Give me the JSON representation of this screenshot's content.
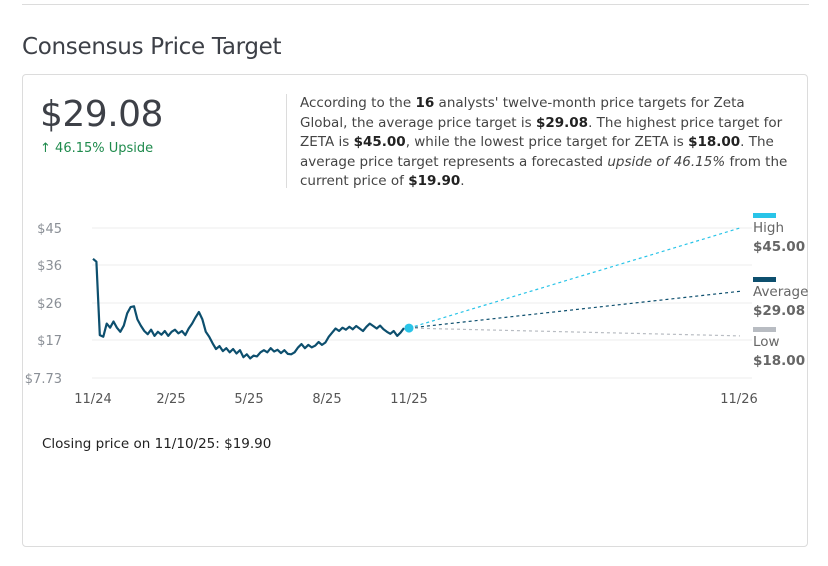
{
  "title": "Consensus Price Target",
  "price_target": "$29.08",
  "upside_label": "46.15% Upside",
  "summary": {
    "t1": "According to the ",
    "analyst_count": "16",
    "t2": " analysts' twelve-month price targets for Zeta Global, the average price target is ",
    "average": "$29.08",
    "t3": ". The highest price target for ZETA is ",
    "high": "$45.00",
    "t4": ", while the lowest price target for ZETA is ",
    "low": "$18.00",
    "t5": ". The average price target represents a forecasted ",
    "upside_phrase": "upside of 46.15%",
    "t6": " from the current price of ",
    "current": "$19.90",
    "t7": "."
  },
  "closing_price": "Closing price on 11/10/25: $19.90",
  "colors": {
    "price_line": "#0d4f6e",
    "high": "#29c4e8",
    "average": "#0d4f6e",
    "low": "#b8bcc2",
    "upside": "#1f8b4d"
  },
  "chart_data": {
    "type": "line",
    "y_ticks": [
      "$45",
      "$36",
      "$26",
      "$17",
      "$7.73"
    ],
    "y_tick_values": [
      45,
      36,
      26,
      17,
      7.73
    ],
    "ylim": [
      7.73,
      45
    ],
    "x_ticks": [
      "11/24",
      "2/25",
      "5/25",
      "8/25",
      "11/25",
      "11/26"
    ],
    "series": [
      {
        "values": [
          [
            0,
            37.5
          ],
          [
            1,
            36.8
          ],
          [
            2,
            18.2
          ],
          [
            3,
            17.8
          ],
          [
            4,
            21.0
          ],
          [
            5,
            20.0
          ],
          [
            6,
            21.5
          ],
          [
            7,
            20.0
          ],
          [
            8,
            19.0
          ],
          [
            9,
            20.5
          ],
          [
            10,
            23.5
          ],
          [
            11,
            25.0
          ],
          [
            12,
            25.2
          ],
          [
            13,
            22.0
          ],
          [
            14,
            20.5
          ],
          [
            15,
            19.2
          ],
          [
            16,
            18.4
          ],
          [
            17,
            19.5
          ],
          [
            18,
            18.0
          ],
          [
            19,
            19.0
          ],
          [
            20,
            18.3
          ],
          [
            21,
            19.2
          ],
          [
            22,
            18.0
          ],
          [
            23,
            19.0
          ],
          [
            24,
            19.5
          ],
          [
            25,
            18.6
          ],
          [
            26,
            19.2
          ],
          [
            27,
            18.2
          ],
          [
            28,
            19.8
          ],
          [
            29,
            21.0
          ],
          [
            30,
            22.5
          ],
          [
            31,
            23.8
          ],
          [
            32,
            22.0
          ],
          [
            33,
            19.0
          ],
          [
            34,
            17.8
          ],
          [
            35,
            16.2
          ],
          [
            36,
            14.8
          ],
          [
            37,
            15.5
          ],
          [
            38,
            14.3
          ],
          [
            39,
            15.0
          ],
          [
            40,
            14.0
          ],
          [
            41,
            14.8
          ],
          [
            42,
            13.7
          ],
          [
            43,
            14.5
          ],
          [
            44,
            12.8
          ],
          [
            45,
            13.5
          ],
          [
            46,
            12.5
          ],
          [
            47,
            13.2
          ],
          [
            48,
            13.0
          ],
          [
            49,
            14.0
          ],
          [
            50,
            14.5
          ],
          [
            51,
            14.0
          ],
          [
            52,
            15.0
          ],
          [
            53,
            14.2
          ],
          [
            54,
            14.6
          ],
          [
            55,
            13.8
          ],
          [
            56,
            14.5
          ],
          [
            57,
            13.6
          ],
          [
            58,
            13.5
          ],
          [
            59,
            14.0
          ],
          [
            60,
            15.2
          ],
          [
            61,
            16.0
          ],
          [
            62,
            15.0
          ],
          [
            63,
            15.8
          ],
          [
            64,
            15.2
          ],
          [
            65,
            15.6
          ],
          [
            66,
            16.5
          ],
          [
            67,
            15.8
          ],
          [
            68,
            16.4
          ],
          [
            69,
            17.8
          ],
          [
            70,
            18.8
          ],
          [
            71,
            19.8
          ],
          [
            72,
            19.2
          ],
          [
            73,
            20.0
          ],
          [
            74,
            19.5
          ],
          [
            75,
            20.2
          ],
          [
            76,
            19.6
          ],
          [
            77,
            20.4
          ],
          [
            78,
            19.8
          ],
          [
            79,
            19.2
          ],
          [
            80,
            20.2
          ],
          [
            81,
            21.0
          ],
          [
            82,
            20.4
          ],
          [
            83,
            19.8
          ],
          [
            84,
            20.5
          ],
          [
            85,
            19.6
          ],
          [
            86,
            19.0
          ],
          [
            87,
            18.5
          ],
          [
            88,
            19.2
          ],
          [
            89,
            18.0
          ],
          [
            90,
            18.8
          ],
          [
            91,
            19.9
          ]
        ]
      }
    ],
    "projections": [
      {
        "name": "High",
        "value": "$45.00",
        "target": 45.0
      },
      {
        "name": "Average",
        "value": "$29.08",
        "target": 29.08
      },
      {
        "name": "Low",
        "value": "$18.00",
        "target": 18.0
      }
    ],
    "current_price": 19.9
  }
}
